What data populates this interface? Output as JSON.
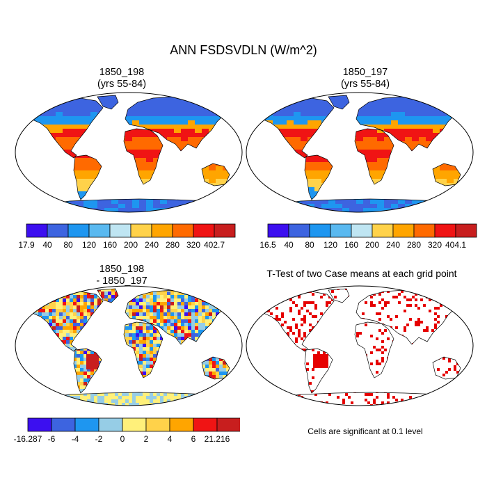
{
  "title": "ANN FSDSVDLN (W/m^2)",
  "panels": [
    {
      "id": "p1",
      "title_line1": "1850_198",
      "title_line2": "(yrs 55-84)",
      "colorbar": {
        "colors": [
          "#3c0ff0",
          "#3d64e0",
          "#1e96f0",
          "#5ab9f0",
          "#bfe5f2",
          "#ffd24a",
          "#ffa500",
          "#ff6a00",
          "#f01414",
          "#c81e1e"
        ],
        "labels": [
          "17.9",
          "40",
          "80",
          "120",
          "160",
          "200",
          "240",
          "280",
          "320",
          "402.7"
        ]
      }
    },
    {
      "id": "p2",
      "title_line1": "1850_197",
      "title_line2": "(yrs 55-84)",
      "colorbar": {
        "colors": [
          "#3c0ff0",
          "#3d64e0",
          "#1e96f0",
          "#5ab9f0",
          "#bfe5f2",
          "#ffd24a",
          "#ffa500",
          "#ff6a00",
          "#f01414",
          "#c81e1e"
        ],
        "labels": [
          "16.5",
          "40",
          "80",
          "120",
          "160",
          "200",
          "240",
          "280",
          "320",
          "404.1"
        ]
      }
    },
    {
      "id": "p3",
      "title_line1": "1850_198",
      "title_line2": "- 1850_197",
      "colorbar": {
        "colors": [
          "#3c0ff0",
          "#3d64e0",
          "#1e96f0",
          "#96cde6",
          "#fff07a",
          "#ffd24a",
          "#ffa500",
          "#f01414",
          "#c81e1e"
        ],
        "labels": [
          "-16.287",
          "-6",
          "-4",
          "-2",
          "0",
          "2",
          "4",
          "6",
          "21.216"
        ]
      }
    }
  ],
  "ttest": {
    "title": "T-Test of two Case means at each grid point",
    "note": "Cells are significant at 0.1 level",
    "color": "#e60000"
  }
}
